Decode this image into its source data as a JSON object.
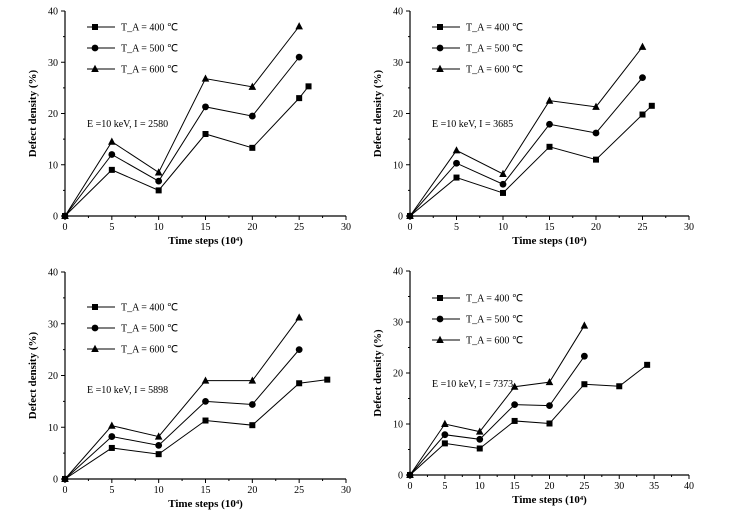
{
  "chart_data": [
    {
      "type": "line",
      "xlabel": "Time steps (10⁴)",
      "ylabel": "Defect density (%)",
      "xlim": [
        0,
        30
      ],
      "ylim": [
        0,
        40
      ],
      "xticks": [
        "0",
        "5",
        "10",
        "15",
        "20",
        "25",
        "30"
      ],
      "yticks": [
        "0",
        "10",
        "20",
        "30",
        "40"
      ],
      "legend_position": "top-left",
      "annotation": {
        "E": "10 keV",
        "I": "2580",
        "text": "E =10 keV, I = 2580"
      },
      "series": [
        {
          "name": "T_A = 400 ℃",
          "marker": "square",
          "x": [
            0,
            5,
            10,
            15,
            20,
            25,
            26
          ],
          "y": [
            0,
            9,
            5,
            16,
            13.3,
            23,
            25.3
          ]
        },
        {
          "name": "T_A = 500 ℃",
          "marker": "circle",
          "x": [
            0,
            5,
            10,
            15,
            20,
            25
          ],
          "y": [
            0,
            12,
            6.8,
            21.3,
            19.5,
            31
          ]
        },
        {
          "name": "T_A = 600 ℃",
          "marker": "triangle",
          "x": [
            0,
            5,
            10,
            15,
            20,
            25
          ],
          "y": [
            0,
            14.5,
            8.5,
            26.8,
            25.2,
            37
          ]
        }
      ]
    },
    {
      "type": "line",
      "xlabel": "Time steps (10⁴)",
      "ylabel": "Defect density (%)",
      "xlim": [
        0,
        30
      ],
      "ylim": [
        0,
        40
      ],
      "xticks": [
        "0",
        "5",
        "10",
        "15",
        "20",
        "25",
        "30"
      ],
      "yticks": [
        "0",
        "10",
        "20",
        "30",
        "40"
      ],
      "legend_position": "top-left",
      "annotation": {
        "E": "10 keV",
        "I": "3685",
        "text": "E =10 keV, I = 3685"
      },
      "series": [
        {
          "name": "T_A = 400 ℃",
          "marker": "square",
          "x": [
            0,
            5,
            10,
            15,
            20,
            25,
            26
          ],
          "y": [
            0,
            7.5,
            4.5,
            13.5,
            11,
            19.8,
            21.5
          ]
        },
        {
          "name": "T_A = 500 ℃",
          "marker": "circle",
          "x": [
            0,
            5,
            10,
            15,
            20,
            25
          ],
          "y": [
            0,
            10.3,
            6.2,
            17.9,
            16.2,
            27
          ]
        },
        {
          "name": "T_A = 600 ℃",
          "marker": "triangle",
          "x": [
            0,
            5,
            10,
            15,
            20,
            25
          ],
          "y": [
            0,
            12.8,
            8.2,
            22.5,
            21.3,
            33
          ]
        }
      ]
    },
    {
      "type": "line",
      "xlabel": "Time steps (10⁴)",
      "ylabel": "Defect density (%)",
      "xlim": [
        0,
        30
      ],
      "ylim": [
        0,
        40
      ],
      "xticks": [
        "0",
        "5",
        "10",
        "15",
        "20",
        "25",
        "30"
      ],
      "yticks": [
        "0",
        "10",
        "20",
        "30",
        "40"
      ],
      "legend_position": "left",
      "annotation": {
        "E": "10 keV",
        "I": "5898",
        "text": "E =10 keV, I = 5898"
      },
      "series": [
        {
          "name": "T_A = 400 ℃",
          "marker": "square",
          "x": [
            0,
            5,
            10,
            15,
            20,
            25,
            28
          ],
          "y": [
            0,
            6,
            4.8,
            11.3,
            10.4,
            18.5,
            19.2
          ]
        },
        {
          "name": "T_A = 500 ℃",
          "marker": "circle",
          "x": [
            0,
            5,
            10,
            15,
            20,
            25
          ],
          "y": [
            0,
            8.2,
            6.5,
            15,
            14.4,
            25
          ]
        },
        {
          "name": "T_A = 600 ℃",
          "marker": "triangle",
          "x": [
            0,
            5,
            10,
            15,
            20,
            25
          ],
          "y": [
            0,
            10.3,
            8.2,
            19,
            19,
            31.2
          ]
        }
      ]
    },
    {
      "type": "line",
      "xlabel": "Time steps (10⁴)",
      "ylabel": "Defect density (%)",
      "xlim": [
        0,
        40
      ],
      "ylim": [
        0,
        40
      ],
      "xticks": [
        "0",
        "5",
        "10",
        "15",
        "20",
        "25",
        "30",
        "35",
        "40"
      ],
      "yticks": [
        "0",
        "10",
        "20",
        "30",
        "40"
      ],
      "legend_position": "top-left",
      "annotation": {
        "E": "10 keV",
        "I": "7373",
        "text": "E =10 keV, I = 7373"
      },
      "series": [
        {
          "name": "T_A = 400 ℃",
          "marker": "square",
          "x": [
            0,
            5,
            10,
            15,
            20,
            25,
            30,
            34
          ],
          "y": [
            0,
            6.2,
            5.2,
            10.6,
            10.1,
            17.8,
            17.4,
            21.6
          ]
        },
        {
          "name": "T_A = 500 ℃",
          "marker": "circle",
          "x": [
            0,
            5,
            10,
            15,
            20,
            25
          ],
          "y": [
            0,
            7.9,
            7,
            13.8,
            13.6,
            23.3
          ]
        },
        {
          "name": "T_A = 600 ℃",
          "marker": "triangle",
          "x": [
            0,
            5,
            10,
            15,
            20,
            25
          ],
          "y": [
            0,
            10,
            8.5,
            17.3,
            18.2,
            29.3
          ]
        }
      ]
    }
  ]
}
